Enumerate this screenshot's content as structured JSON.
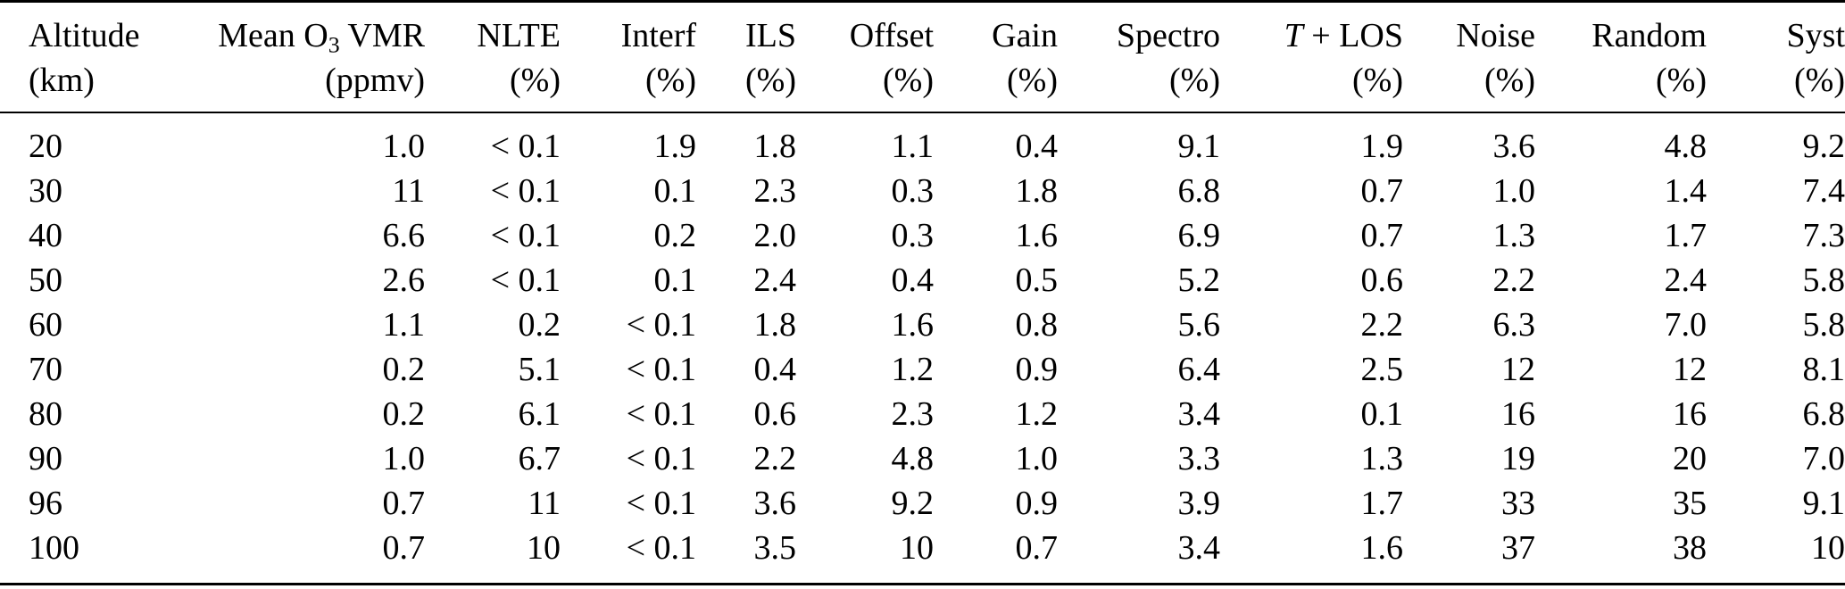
{
  "page": {
    "background_color": "#ffffff",
    "text_color": "#000000",
    "rule_color": "#000000"
  },
  "table": {
    "description": "error-budget-table",
    "columns": [
      {
        "id": "altitude",
        "label": "Altitude",
        "unit": "(km)"
      },
      {
        "id": "mean-o3-vmr",
        "label_pre": "Mean O",
        "label_sub": "3",
        "label_post": " VMR",
        "unit": "(ppmv)"
      },
      {
        "id": "nlte",
        "label": "NLTE",
        "unit": "(%)"
      },
      {
        "id": "interf",
        "label": "Interf",
        "unit": "(%)"
      },
      {
        "id": "ils",
        "label": "ILS",
        "unit": "(%)"
      },
      {
        "id": "offset",
        "label": "Offset",
        "unit": "(%)"
      },
      {
        "id": "gain",
        "label": "Gain",
        "unit": "(%)"
      },
      {
        "id": "spectro",
        "label": "Spectro",
        "unit": "(%)"
      },
      {
        "id": "t-plus-los",
        "label_italic": "T",
        "label_post": " + LOS",
        "unit": "(%)"
      },
      {
        "id": "noise",
        "label": "Noise",
        "unit": "(%)"
      },
      {
        "id": "random",
        "label": "Random",
        "unit": "(%)"
      },
      {
        "id": "syst",
        "label": "Syst",
        "unit": "(%)"
      }
    ],
    "rows": [
      [
        "20",
        "1.0",
        "< 0.1",
        "1.9",
        "1.8",
        "1.1",
        "0.4",
        "9.1",
        "1.9",
        "3.6",
        "4.8",
        "9.2"
      ],
      [
        "30",
        "11",
        "< 0.1",
        "0.1",
        "2.3",
        "0.3",
        "1.8",
        "6.8",
        "0.7",
        "1.0",
        "1.4",
        "7.4"
      ],
      [
        "40",
        "6.6",
        "< 0.1",
        "0.2",
        "2.0",
        "0.3",
        "1.6",
        "6.9",
        "0.7",
        "1.3",
        "1.7",
        "7.3"
      ],
      [
        "50",
        "2.6",
        "< 0.1",
        "0.1",
        "2.4",
        "0.4",
        "0.5",
        "5.2",
        "0.6",
        "2.2",
        "2.4",
        "5.8"
      ],
      [
        "60",
        "1.1",
        "0.2",
        "< 0.1",
        "1.8",
        "1.6",
        "0.8",
        "5.6",
        "2.2",
        "6.3",
        "7.0",
        "5.8"
      ],
      [
        "70",
        "0.2",
        "5.1",
        "< 0.1",
        "0.4",
        "1.2",
        "0.9",
        "6.4",
        "2.5",
        "12",
        "12",
        "8.1"
      ],
      [
        "80",
        "0.2",
        "6.1",
        "< 0.1",
        "0.6",
        "2.3",
        "1.2",
        "3.4",
        "0.1",
        "16",
        "16",
        "6.8"
      ],
      [
        "90",
        "1.0",
        "6.7",
        "< 0.1",
        "2.2",
        "4.8",
        "1.0",
        "3.3",
        "1.3",
        "19",
        "20",
        "7.0"
      ],
      [
        "96",
        "0.7",
        "11",
        "< 0.1",
        "3.6",
        "9.2",
        "0.9",
        "3.9",
        "1.7",
        "33",
        "35",
        "9.1"
      ],
      [
        "100",
        "0.7",
        "10",
        "< 0.1",
        "3.5",
        "10",
        "0.7",
        "3.4",
        "1.6",
        "37",
        "38",
        "10"
      ]
    ]
  }
}
